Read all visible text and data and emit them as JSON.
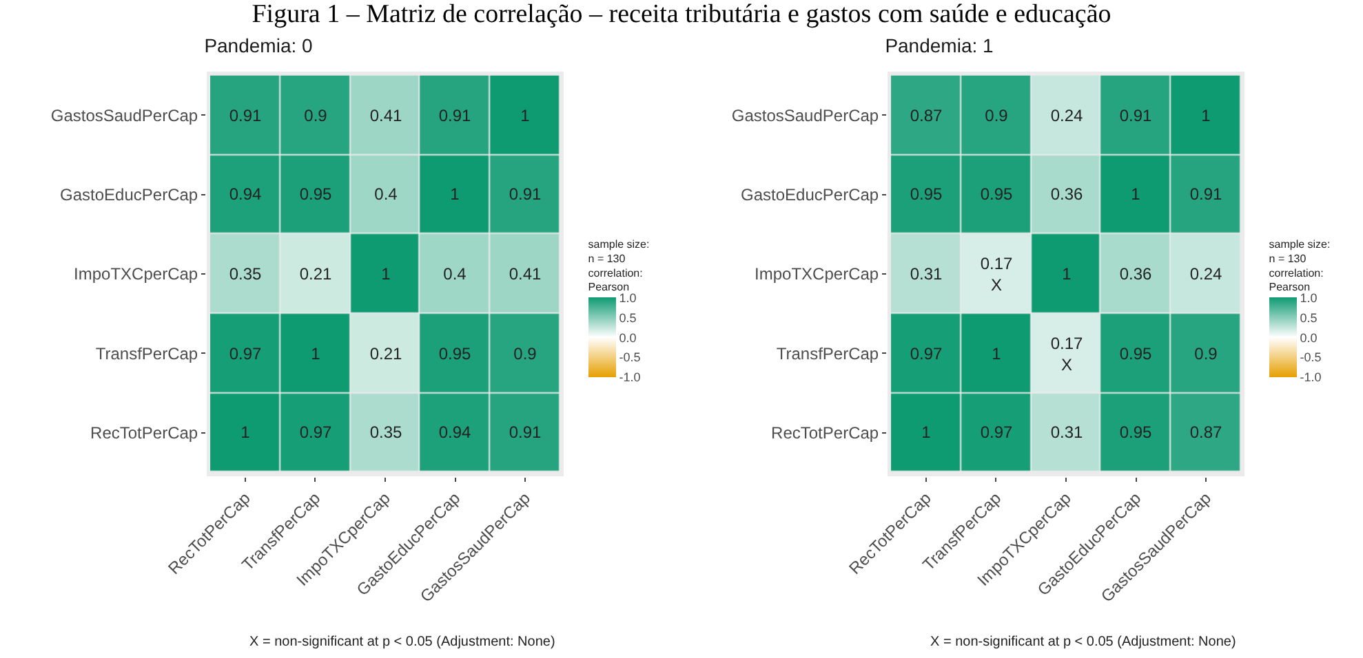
{
  "chart_data": [
    {
      "type": "heatmap",
      "title": "Pandemia: 0",
      "categories": [
        "RecTotPerCap",
        "TransfPerCap",
        "ImpoTXCperCap",
        "GastoEducPerCap",
        "GastosSaudPerCap"
      ],
      "y_categories": [
        "GastosSaudPerCap",
        "GastoEducPerCap",
        "ImpoTXCperCap",
        "TransfPerCap",
        "RecTotPerCap"
      ],
      "cells": [
        [
          0.91,
          0.9,
          0.41,
          0.91,
          1
        ],
        [
          0.94,
          0.95,
          0.4,
          1,
          0.91
        ],
        [
          0.35,
          0.21,
          1,
          0.4,
          0.41
        ],
        [
          0.97,
          1,
          0.21,
          0.95,
          0.9
        ],
        [
          1,
          0.97,
          0.35,
          0.94,
          0.91
        ]
      ],
      "data_labels": true,
      "clabel": "sample size:\nn = 130\ncorrelation:\nPearson",
      "clim": [
        -1,
        1
      ],
      "cticks": [
        {
          "value": -1,
          "label": "-1.0"
        },
        {
          "value": -0.5,
          "label": "-0.5"
        },
        {
          "value": 0,
          "label": "0.0"
        },
        {
          "value": 0.5,
          "label": "0.5"
        },
        {
          "value": 1,
          "label": "1.0"
        }
      ],
      "annotations": [
        "Figura 1 – Matriz de correlação – receita tributária e gastos com saúde e educação",
        "X = non-significant at p < 0.05 (Adjustment: None)"
      ]
    },
    {
      "type": "heatmap",
      "title": "Pandemia: 1",
      "categories": [
        "RecTotPerCap",
        "TransfPerCap",
        "ImpoTXCperCap",
        "GastoEducPerCap",
        "GastosSaudPerCap"
      ],
      "y_categories": [
        "GastosSaudPerCap",
        "GastoEducPerCap",
        "ImpoTXCperCap",
        "TransfPerCap",
        "RecTotPerCap"
      ],
      "cells": [
        [
          0.87,
          0.9,
          0.24,
          0.91,
          1
        ],
        [
          0.95,
          0.95,
          0.36,
          1,
          0.91
        ],
        [
          0.31,
          0.17,
          1,
          0.36,
          0.24
        ],
        [
          0.97,
          1,
          0.17,
          0.95,
          0.9
        ],
        [
          1,
          0.97,
          0.31,
          0.95,
          0.87
        ]
      ],
      "data_labels": true,
      "clabel": "sample size:\nn = 130\ncorrelation:\nPearson",
      "clim": [
        -1,
        1
      ],
      "cticks": [
        {
          "value": -1,
          "label": "-1.0"
        },
        {
          "value": -0.5,
          "label": "-0.5"
        },
        {
          "value": 0,
          "label": "0.0"
        },
        {
          "value": 0.5,
          "label": "0.5"
        },
        {
          "value": 1,
          "label": "1.0"
        }
      ],
      "cell_labels": [
        [
          "0.87",
          "0.9",
          "0.24",
          "0.91",
          "1"
        ],
        [
          "0.95",
          "0.95",
          "0.36",
          "1",
          "0.91"
        ],
        [
          "0.31",
          "0.17\nX",
          "1",
          "0.36",
          "0.24"
        ],
        [
          "0.97",
          "1",
          "0.17\nX",
          "0.95",
          "0.9"
        ],
        [
          "1",
          "0.97",
          "0.31",
          "0.95",
          "0.87"
        ]
      ],
      "annotations": [
        "X = non-significant at p < 0.05 (Adjustment: None)"
      ]
    }
  ]
}
